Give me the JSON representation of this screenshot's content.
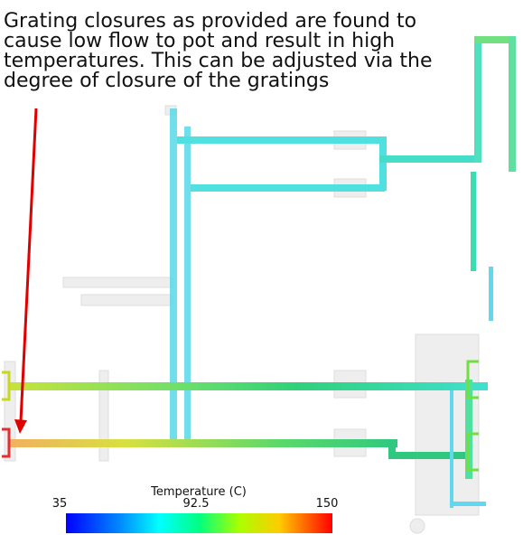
{
  "annotation": {
    "lines": [
      "Grating closures as provided are found to",
      "cause low flow to pot and result in high",
      "temperatures. This can be adjusted via the",
      "degree of closure of the gratings"
    ]
  },
  "legend": {
    "title": "Temperature (C)",
    "ticks": [
      "35",
      "92.5",
      "150"
    ]
  }
}
